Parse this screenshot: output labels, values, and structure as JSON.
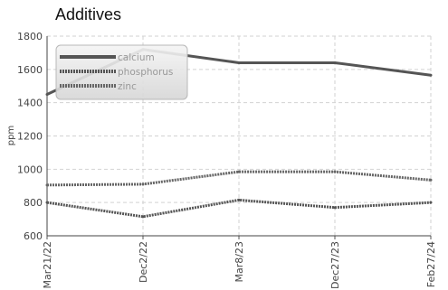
{
  "chart_data": {
    "type": "line",
    "title": "Additives",
    "xlabel": "",
    "ylabel": "ppm",
    "categories": [
      "Mar21/22",
      "Dec2/22",
      "Mar8/23",
      "Dec27/23",
      "Feb27/24"
    ],
    "ylim": [
      600,
      1800
    ],
    "yticks": [
      600,
      800,
      1000,
      1200,
      1400,
      1600,
      1800
    ],
    "grid": true,
    "legend_position": "top-left",
    "series": [
      {
        "name": "calcium",
        "values": [
          1450,
          1720,
          1640,
          1640,
          1565
        ],
        "color": "#555555",
        "style": "solid"
      },
      {
        "name": "phosphorus",
        "values": [
          800,
          715,
          815,
          770,
          800
        ],
        "color": "#555555",
        "style": "dotted"
      },
      {
        "name": "zinc",
        "values": [
          905,
          910,
          985,
          985,
          935
        ],
        "color": "#666666",
        "style": "dotted"
      }
    ]
  }
}
